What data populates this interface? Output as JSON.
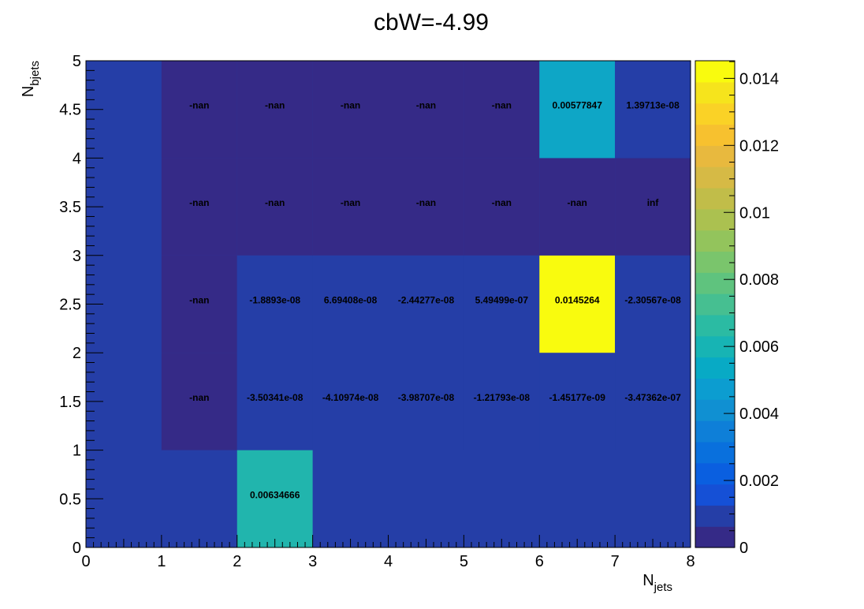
{
  "chart_data": {
    "type": "heatmap",
    "title": "cbW=-4.99",
    "xlabel": {
      "main": "N",
      "sub": "jets"
    },
    "ylabel": {
      "main": "N",
      "sub": "bjets"
    },
    "xlim": [
      0,
      8
    ],
    "ylim": [
      0,
      5
    ],
    "x_bins": [
      0,
      1,
      2,
      3,
      4,
      5,
      6,
      7,
      8
    ],
    "y_bins": [
      0,
      1,
      2,
      3,
      4,
      5
    ],
    "x_tick_labels": [
      "0",
      "1",
      "2",
      "3",
      "4",
      "5",
      "6",
      "7",
      "8"
    ],
    "y_tick_labels": [
      "0",
      "0.5",
      "1",
      "1.5",
      "2",
      "2.5",
      "3",
      "3.5",
      "4",
      "4.5",
      "5"
    ],
    "y_tick_values": [
      0,
      0.5,
      1,
      1.5,
      2,
      2.5,
      3,
      3.5,
      4,
      4.5,
      5
    ],
    "zlim": [
      0,
      0.0145264
    ],
    "z_tick_labels": [
      "0",
      "0.002",
      "0.004",
      "0.006",
      "0.008",
      "0.01",
      "0.012",
      "0.014"
    ],
    "z_tick_values": [
      0,
      0.002,
      0.004,
      0.006,
      0.008,
      0.01,
      0.012,
      0.014
    ],
    "cells": [
      {
        "x": 2,
        "y": 0,
        "value": 0.00634666,
        "label": "0.00634666",
        "fill": "#21b5ad"
      },
      {
        "x": 1,
        "y": 1,
        "value": null,
        "label": "-nan",
        "fill": "#352a87"
      },
      {
        "x": 2,
        "y": 1,
        "value": -3.50341e-08,
        "label": "-3.50341e-08",
        "fill": "#253ea7"
      },
      {
        "x": 3,
        "y": 1,
        "value": -4.10974e-08,
        "label": "-4.10974e-08",
        "fill": "#253ea7"
      },
      {
        "x": 4,
        "y": 1,
        "value": -3.98707e-08,
        "label": "-3.98707e-08",
        "fill": "#253ea7"
      },
      {
        "x": 5,
        "y": 1,
        "value": -1.21793e-08,
        "label": "-1.21793e-08",
        "fill": "#253ea7"
      },
      {
        "x": 6,
        "y": 1,
        "value": -1.45177e-09,
        "label": "-1.45177e-09",
        "fill": "#253ea7"
      },
      {
        "x": 7,
        "y": 1,
        "value": -3.47362e-07,
        "label": "-3.47362e-07",
        "fill": "#253ea7"
      },
      {
        "x": 1,
        "y": 2,
        "value": null,
        "label": "-nan",
        "fill": "#352a87"
      },
      {
        "x": 2,
        "y": 2,
        "value": -1.8893e-08,
        "label": "-1.8893e-08",
        "fill": "#253ea7"
      },
      {
        "x": 3,
        "y": 2,
        "value": 6.69408e-08,
        "label": "6.69408e-08",
        "fill": "#253ea7"
      },
      {
        "x": 4,
        "y": 2,
        "value": -2.44277e-08,
        "label": "-2.44277e-08",
        "fill": "#253ea7"
      },
      {
        "x": 5,
        "y": 2,
        "value": 5.49499e-07,
        "label": "5.49499e-07",
        "fill": "#253ea7"
      },
      {
        "x": 6,
        "y": 2,
        "value": 0.0145264,
        "label": "0.0145264",
        "fill": "#f9fb0e"
      },
      {
        "x": 7,
        "y": 2,
        "value": -2.30567e-08,
        "label": "-2.30567e-08",
        "fill": "#253ea7"
      },
      {
        "x": 1,
        "y": 3,
        "value": null,
        "label": "-nan",
        "fill": "#352a87"
      },
      {
        "x": 2,
        "y": 3,
        "value": null,
        "label": "-nan",
        "fill": "#352a87"
      },
      {
        "x": 3,
        "y": 3,
        "value": null,
        "label": "-nan",
        "fill": "#352a87"
      },
      {
        "x": 4,
        "y": 3,
        "value": null,
        "label": "-nan",
        "fill": "#352a87"
      },
      {
        "x": 5,
        "y": 3,
        "value": null,
        "label": "-nan",
        "fill": "#352a87"
      },
      {
        "x": 6,
        "y": 3,
        "value": null,
        "label": "-nan",
        "fill": "#352a87"
      },
      {
        "x": 7,
        "y": 3,
        "value": null,
        "label": "inf",
        "fill": "#352a87"
      },
      {
        "x": 1,
        "y": 4,
        "value": null,
        "label": "-nan",
        "fill": "#352a87"
      },
      {
        "x": 2,
        "y": 4,
        "value": null,
        "label": "-nan",
        "fill": "#352a87"
      },
      {
        "x": 3,
        "y": 4,
        "value": null,
        "label": "-nan",
        "fill": "#352a87"
      },
      {
        "x": 4,
        "y": 4,
        "value": null,
        "label": "-nan",
        "fill": "#352a87"
      },
      {
        "x": 5,
        "y": 4,
        "value": null,
        "label": "-nan",
        "fill": "#352a87"
      },
      {
        "x": 6,
        "y": 4,
        "value": 0.00577847,
        "label": "0.00577847",
        "fill": "#0ea6c6"
      },
      {
        "x": 7,
        "y": 4,
        "value": 1.39713e-08,
        "label": "1.39713e-08",
        "fill": "#253ea7"
      }
    ],
    "colors": {
      "background_cell": "#253ea7",
      "palette": [
        "#352a87",
        "#253ea7",
        "#1550d6",
        "#0a5fe0",
        "#0970dd",
        "#0e7fd8",
        "#1090d2",
        "#0c9dd0",
        "#08aac5",
        "#17b4b4",
        "#2bbba3",
        "#46bf91",
        "#5fc37e",
        "#7ac56c",
        "#93c45c",
        "#abc150",
        "#c1bd49",
        "#d6ba45",
        "#e8b93e",
        "#f7c12f",
        "#fad226",
        "#f6e41c",
        "#f9fb0e"
      ]
    },
    "grid": false
  }
}
